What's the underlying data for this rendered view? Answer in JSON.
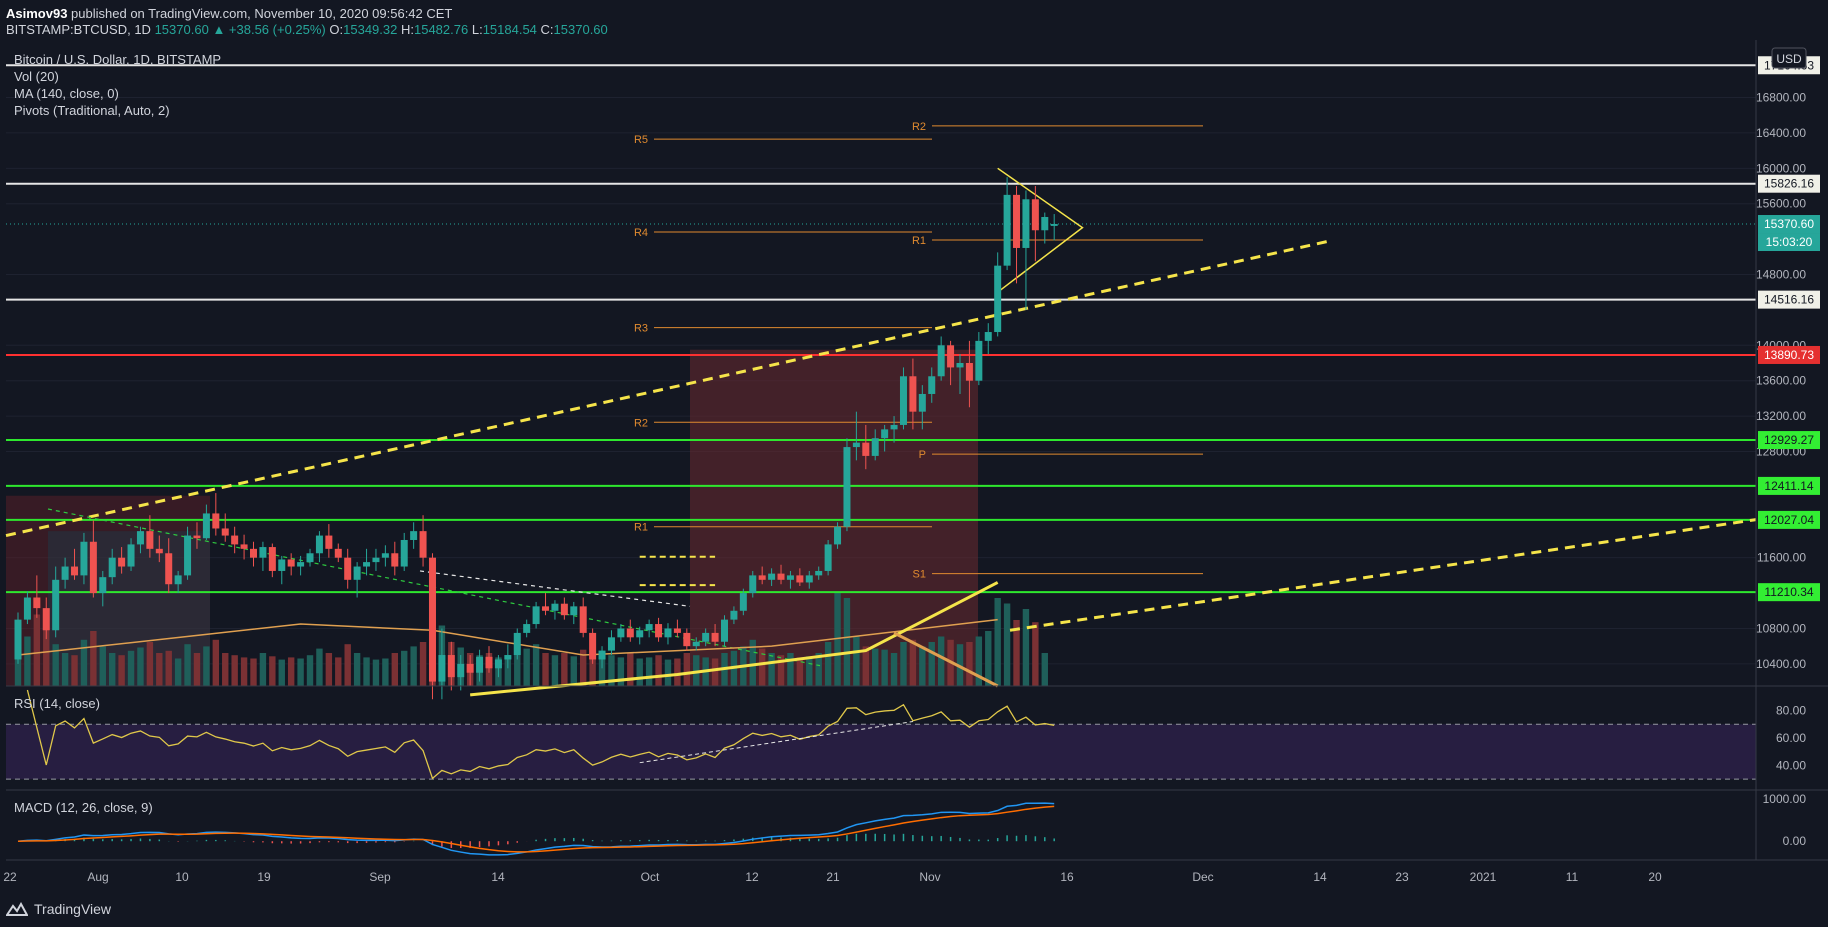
{
  "header": {
    "publisher": "Asimov93",
    "published_text": "published on TradingView.com, November 10, 2020 09:56:42 CET",
    "symbol": "BITSTAMP:BTCUSD, 1D",
    "last": "15370.60",
    "change": "▲ +38.56 (+0.25%)",
    "o_label": "O:",
    "o_value": "15349.32",
    "h_label": "H:",
    "h_value": "15482.76",
    "l_label": "L:",
    "l_value": "15184.54",
    "c_label": "C:",
    "c_value": "15370.60"
  },
  "legend": {
    "title": "Bitcoin / U.S. Dollar, 1D, BITSTAMP",
    "vol": "Vol (20)",
    "ma": "MA (140, close, 0)",
    "pivots": "Pivots (Traditional, Auto, 2)",
    "rsi": "RSI (14, close)",
    "macd": "MACD (12, 26, close, 9)"
  },
  "currency_button": "USD",
  "footer": {
    "brand": "TradingView"
  },
  "colors": {
    "bg": "#131722",
    "up": "#26a69a",
    "down": "#ef5350",
    "trend": "#f5e44a",
    "pivot": "#e08a2f",
    "green": "#2ee82e",
    "red": "#ff3030",
    "white": "#e6e6e6"
  },
  "chart_data": {
    "type": "candlestick",
    "title": "Bitcoin / U.S. Dollar, 1D, BITSTAMP",
    "ylim": [
      10150,
      17450
    ],
    "y_ticks": [
      "16800.00",
      "16400.00",
      "16000.00",
      "15600.00",
      "14800.00",
      "14000.00",
      "13600.00",
      "13200.00",
      "12800.00",
      "11600.00",
      "10800.00",
      "10400.00"
    ],
    "x_ticks": [
      "22",
      "Aug",
      "10",
      "19",
      "Sep",
      "14",
      "Oct",
      "12",
      "21",
      "Nov",
      "16",
      "Dec",
      "14",
      "23",
      "2021",
      "11",
      "20"
    ],
    "horizontal_levels": [
      {
        "value": 17164.63,
        "label": "17164.63",
        "color": "white"
      },
      {
        "value": 15826.16,
        "label": "15826.16",
        "color": "white"
      },
      {
        "value": 14516.16,
        "label": "14516.16",
        "color": "white"
      },
      {
        "value": 13890.73,
        "label": "13890.73",
        "color": "red"
      },
      {
        "value": 12929.27,
        "label": "12929.27",
        "color": "green"
      },
      {
        "value": 12411.14,
        "label": "12411.14",
        "color": "green"
      },
      {
        "value": 12027.04,
        "label": "12027.04",
        "color": "green"
      },
      {
        "value": 11210.34,
        "label": "11210.34",
        "color": "green"
      }
    ],
    "last_price": {
      "value": 15370.6,
      "label": "15370.60",
      "countdown": "15:03:20"
    },
    "pivots": [
      {
        "label": "R5",
        "value": 16330,
        "group": "oct"
      },
      {
        "label": "R4",
        "value": 15280,
        "group": "oct"
      },
      {
        "label": "R3",
        "value": 14200,
        "group": "oct"
      },
      {
        "label": "R2",
        "value": 13130,
        "group": "oct"
      },
      {
        "label": "R1",
        "value": 11950,
        "group": "oct"
      },
      {
        "label": "R2",
        "value": 16480,
        "group": "nov"
      },
      {
        "label": "R1",
        "value": 15190,
        "group": "nov"
      },
      {
        "label": "P",
        "value": 12770,
        "group": "nov"
      },
      {
        "label": "S1",
        "value": 11420,
        "group": "nov"
      }
    ],
    "candles": [
      [
        10450,
        10980,
        10400,
        10900
      ],
      [
        10900,
        11220,
        10850,
        11150
      ],
      [
        11150,
        11400,
        10920,
        11030
      ],
      [
        11030,
        11150,
        10680,
        10780
      ],
      [
        10780,
        11500,
        10700,
        11350
      ],
      [
        11350,
        11600,
        11250,
        11500
      ],
      [
        11500,
        11700,
        11350,
        11400
      ],
      [
        11400,
        11880,
        11300,
        11780
      ],
      [
        11780,
        12020,
        11150,
        11200
      ],
      [
        11200,
        11450,
        11050,
        11380
      ],
      [
        11380,
        11700,
        11300,
        11600
      ],
      [
        11600,
        11720,
        11420,
        11500
      ],
      [
        11500,
        11820,
        11450,
        11750
      ],
      [
        11750,
        11950,
        11650,
        11900
      ],
      [
        11900,
        12080,
        11600,
        11700
      ],
      [
        11700,
        11850,
        11550,
        11650
      ],
      [
        11650,
        11820,
        11200,
        11300
      ],
      [
        11300,
        11450,
        11200,
        11400
      ],
      [
        11400,
        11950,
        11350,
        11850
      ],
      [
        11850,
        12000,
        11700,
        11820
      ],
      [
        11820,
        12200,
        11800,
        12100
      ],
      [
        12100,
        12330,
        11850,
        11930
      ],
      [
        11930,
        12100,
        11780,
        11850
      ],
      [
        11850,
        11950,
        11650,
        11750
      ],
      [
        11750,
        11860,
        11580,
        11700
      ],
      [
        11700,
        11780,
        11500,
        11600
      ],
      [
        11600,
        11780,
        11450,
        11720
      ],
      [
        11720,
        11760,
        11380,
        11450
      ],
      [
        11450,
        11620,
        11300,
        11580
      ],
      [
        11580,
        11650,
        11400,
        11500
      ],
      [
        11500,
        11620,
        11400,
        11550
      ],
      [
        11550,
        11700,
        11500,
        11650
      ],
      [
        11650,
        11900,
        11550,
        11850
      ],
      [
        11850,
        11980,
        11600,
        11700
      ],
      [
        11700,
        11760,
        11550,
        11600
      ],
      [
        11600,
        11700,
        11250,
        11350
      ],
      [
        11350,
        11550,
        11150,
        11500
      ],
      [
        11500,
        11700,
        11400,
        11550
      ],
      [
        11550,
        11700,
        11450,
        11600
      ],
      [
        11600,
        11740,
        11500,
        11650
      ],
      [
        11650,
        11780,
        11400,
        11500
      ],
      [
        11500,
        11880,
        11450,
        11800
      ],
      [
        11800,
        12000,
        11700,
        11900
      ],
      [
        11900,
        12080,
        11500,
        11600
      ],
      [
        11600,
        11650,
        10000,
        10200
      ],
      [
        10200,
        10800,
        10000,
        10500
      ],
      [
        10500,
        10650,
        10100,
        10250
      ],
      [
        10250,
        10500,
        10100,
        10400
      ],
      [
        10400,
        10500,
        10150,
        10300
      ],
      [
        10300,
        10560,
        10200,
        10480
      ],
      [
        10480,
        10600,
        10300,
        10350
      ],
      [
        10350,
        10500,
        10250,
        10450
      ],
      [
        10450,
        10620,
        10350,
        10500
      ],
      [
        10500,
        10800,
        10450,
        10750
      ],
      [
        10750,
        10900,
        10700,
        10850
      ],
      [
        10850,
        11100,
        10800,
        11050
      ],
      [
        11050,
        11200,
        10950,
        11000
      ],
      [
        11000,
        11120,
        10900,
        11080
      ],
      [
        11080,
        11150,
        10900,
        10950
      ],
      [
        10950,
        11100,
        10850,
        11050
      ],
      [
        11050,
        11150,
        10700,
        10750
      ],
      [
        10750,
        10800,
        10400,
        10450
      ],
      [
        10450,
        10600,
        10350,
        10550
      ],
      [
        10550,
        10780,
        10500,
        10700
      ],
      [
        10700,
        10850,
        10650,
        10800
      ],
      [
        10800,
        10900,
        10650,
        10700
      ],
      [
        10700,
        10820,
        10620,
        10780
      ],
      [
        10780,
        10900,
        10700,
        10850
      ],
      [
        10850,
        10920,
        10650,
        10700
      ],
      [
        10700,
        10860,
        10620,
        10800
      ],
      [
        10800,
        10900,
        10700,
        10750
      ],
      [
        10750,
        10800,
        10550,
        10600
      ],
      [
        10600,
        10700,
        10550,
        10650
      ],
      [
        10650,
        10800,
        10600,
        10750
      ],
      [
        10750,
        10850,
        10600,
        10650
      ],
      [
        10650,
        10950,
        10600,
        10900
      ],
      [
        10900,
        11050,
        10850,
        11000
      ],
      [
        11000,
        11250,
        10950,
        11200
      ],
      [
        11200,
        11450,
        11150,
        11400
      ],
      [
        11400,
        11500,
        11300,
        11350
      ],
      [
        11350,
        11480,
        11280,
        11420
      ],
      [
        11420,
        11520,
        11300,
        11350
      ],
      [
        11350,
        11450,
        11250,
        11400
      ],
      [
        11400,
        11480,
        11280,
        11320
      ],
      [
        11320,
        11450,
        11250,
        11400
      ],
      [
        11400,
        11500,
        11350,
        11450
      ],
      [
        11450,
        11800,
        11400,
        11750
      ],
      [
        11750,
        12000,
        11700,
        11950
      ],
      [
        11950,
        12950,
        11900,
        12850
      ],
      [
        12850,
        13250,
        12700,
        12900
      ],
      [
        12900,
        13100,
        12600,
        12750
      ],
      [
        12750,
        13050,
        12700,
        12950
      ],
      [
        12950,
        13100,
        12800,
        13050
      ],
      [
        13050,
        13200,
        12900,
        13100
      ],
      [
        13100,
        13750,
        13050,
        13650
      ],
      [
        13650,
        13850,
        13050,
        13250
      ],
      [
        13250,
        13550,
        13050,
        13450
      ],
      [
        13450,
        13750,
        13350,
        13650
      ],
      [
        13650,
        14100,
        13600,
        14000
      ],
      [
        14000,
        14050,
        13550,
        13750
      ],
      [
        13750,
        13900,
        13450,
        13800
      ],
      [
        13800,
        14050,
        13300,
        13600
      ],
      [
        13600,
        14150,
        13550,
        14050
      ],
      [
        14050,
        14250,
        13900,
        14150
      ],
      [
        14150,
        15050,
        14100,
        14900
      ],
      [
        14900,
        15900,
        14850,
        15700
      ],
      [
        15700,
        15800,
        14700,
        15100
      ],
      [
        15100,
        15750,
        14400,
        15650
      ],
      [
        15650,
        15800,
        14950,
        15300
      ],
      [
        15300,
        15500,
        15150,
        15450
      ],
      [
        15349,
        15483,
        15185,
        15371
      ]
    ],
    "volume_units": "relative 0-1",
    "volume": [
      0.3,
      0.45,
      0.65,
      0.55,
      0.38,
      0.3,
      0.28,
      0.42,
      0.5,
      0.36,
      0.3,
      0.28,
      0.32,
      0.35,
      0.4,
      0.3,
      0.32,
      0.25,
      0.38,
      0.3,
      0.36,
      0.42,
      0.3,
      0.28,
      0.26,
      0.25,
      0.3,
      0.27,
      0.24,
      0.26,
      0.25,
      0.28,
      0.34,
      0.3,
      0.26,
      0.38,
      0.3,
      0.26,
      0.24,
      0.25,
      0.3,
      0.32,
      0.36,
      0.4,
      0.95,
      0.55,
      0.4,
      0.35,
      0.3,
      0.28,
      0.3,
      0.26,
      0.27,
      0.36,
      0.34,
      0.38,
      0.3,
      0.28,
      0.3,
      0.27,
      0.33,
      0.45,
      0.3,
      0.28,
      0.26,
      0.3,
      0.25,
      0.26,
      0.28,
      0.24,
      0.25,
      0.3,
      0.28,
      0.26,
      0.25,
      0.3,
      0.32,
      0.36,
      0.42,
      0.34,
      0.3,
      0.28,
      0.3,
      0.26,
      0.27,
      0.3,
      0.4,
      0.85,
      0.8,
      0.45,
      0.36,
      0.34,
      0.33,
      0.3,
      0.4,
      0.42,
      0.36,
      0.4,
      0.45,
      0.42,
      0.38,
      0.4,
      0.45,
      0.5,
      0.8,
      0.75,
      0.6,
      0.7,
      0.58,
      0.3
    ],
    "rsi": {
      "ylim": [
        25,
        95
      ],
      "ticks": [
        "80.00",
        "60.00",
        "40.00"
      ],
      "bands": [
        70,
        30
      ]
    },
    "macd": {
      "ticks": [
        "1000.00",
        "0.00"
      ]
    }
  }
}
